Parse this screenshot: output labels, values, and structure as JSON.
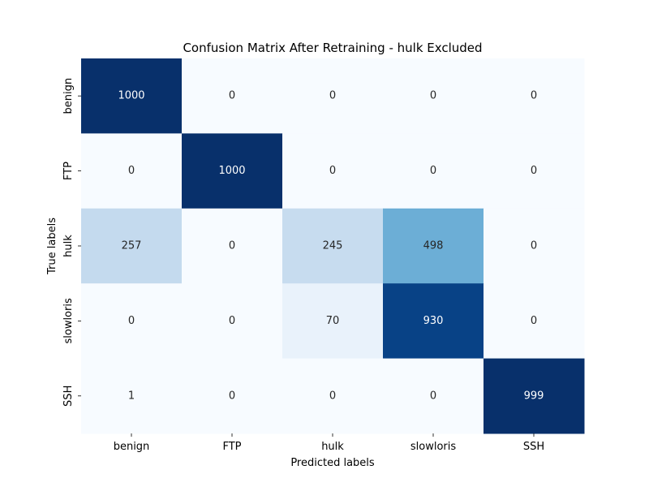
{
  "chart_data": {
    "type": "heatmap",
    "title": "Confusion Matrix After Retraining - hulk Excluded",
    "xlabel": "Predicted labels",
    "ylabel": "True labels",
    "x_categories": [
      "benign",
      "FTP",
      "hulk",
      "slowloris",
      "SSH"
    ],
    "y_categories": [
      "benign",
      "FTP",
      "hulk",
      "slowloris",
      "SSH"
    ],
    "values": [
      [
        1000,
        0,
        0,
        0,
        0
      ],
      [
        0,
        1000,
        0,
        0,
        0
      ],
      [
        257,
        0,
        245,
        498,
        0
      ],
      [
        0,
        0,
        70,
        930,
        0
      ],
      [
        1,
        0,
        0,
        0,
        999
      ]
    ],
    "colormap": "Blues",
    "color_range": [
      0,
      1000
    ],
    "colorbar": false,
    "grid": false,
    "colors": {
      "low": "#f7fbff",
      "high": "#08306b",
      "text_on_light": "#262626",
      "text_on_dark": "#ffffff"
    }
  }
}
